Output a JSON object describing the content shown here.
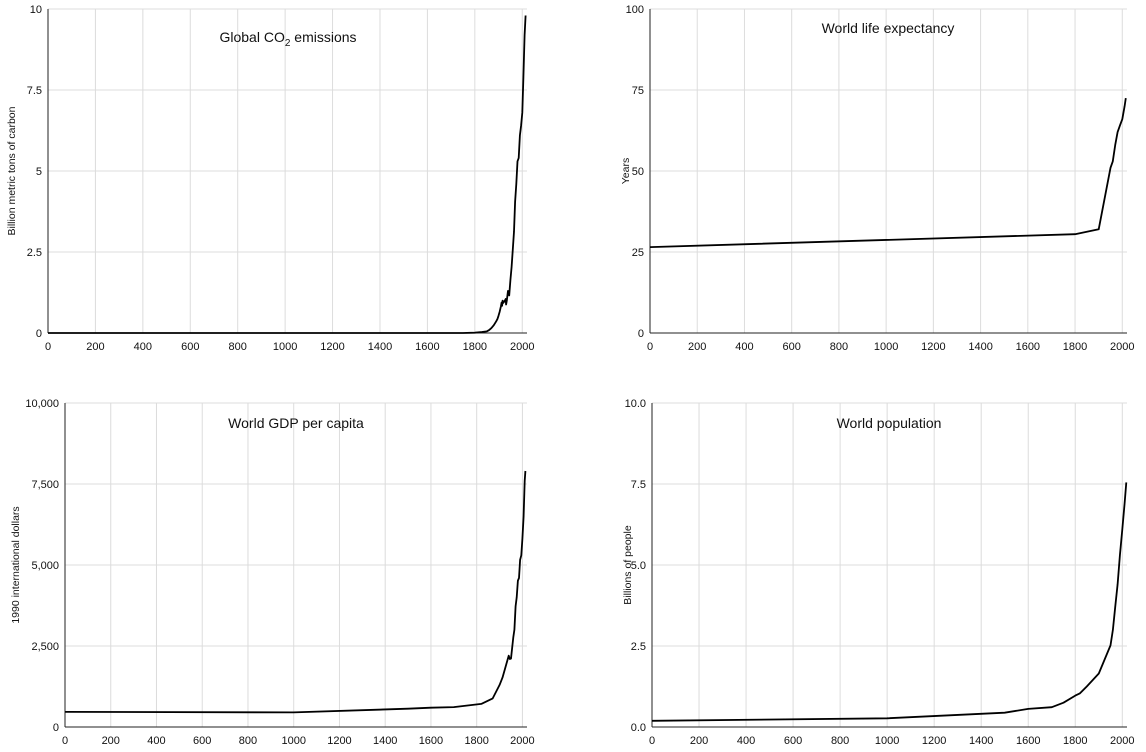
{
  "chart_data": [
    {
      "type": "line",
      "title": "Global CO",
      "title_sub": "2",
      "title_after": " emissions",
      "ylabel": "Billion metric tons of carbon",
      "xlim": [
        0,
        2020
      ],
      "ylim": [
        0,
        10
      ],
      "xticks": [
        0,
        200,
        400,
        600,
        800,
        1000,
        1200,
        1400,
        1600,
        1800,
        2000
      ],
      "xtick_labels": [
        "0",
        "200",
        "400",
        "600",
        "800",
        "1000",
        "1200",
        "1400",
        "1600",
        "1800",
        "2000"
      ],
      "yticks": [
        0,
        2.5,
        5,
        7.5,
        10
      ],
      "ytick_labels": [
        "0",
        "2.5",
        "5",
        "7.5",
        "10"
      ],
      "grid": true,
      "series": [
        {
          "x": [
            0,
            1750,
            1800,
            1830,
            1850,
            1860,
            1870,
            1880,
            1890,
            1895,
            1900,
            1905,
            1910,
            1913,
            1915,
            1917,
            1920,
            1925,
            1930,
            1932,
            1935,
            1940,
            1945,
            1950,
            1955,
            1960,
            1965,
            1970,
            1975,
            1980,
            1985,
            1990,
            1995,
            2000,
            2005,
            2010,
            2014
          ],
          "y": [
            0,
            0,
            0.01,
            0.03,
            0.05,
            0.09,
            0.15,
            0.24,
            0.36,
            0.43,
            0.53,
            0.66,
            0.82,
            0.94,
            0.84,
            1.0,
            0.93,
            0.98,
            1.05,
            0.88,
            1.0,
            1.3,
            1.16,
            1.63,
            2.04,
            2.58,
            3.13,
            4.05,
            4.6,
            5.3,
            5.4,
            6.1,
            6.4,
            6.8,
            7.9,
            9.2,
            9.8
          ]
        }
      ]
    },
    {
      "type": "line",
      "title": "World life expectancy",
      "ylabel": "Years",
      "xlim": [
        0,
        2020
      ],
      "ylim": [
        0,
        100
      ],
      "xticks": [
        0,
        200,
        400,
        600,
        800,
        1000,
        1200,
        1400,
        1600,
        1800,
        2000
      ],
      "xtick_labels": [
        "0",
        "200",
        "400",
        "600",
        "800",
        "1000",
        "1200",
        "1400",
        "1600",
        "1800",
        "2000"
      ],
      "yticks": [
        0,
        25,
        50,
        75,
        100
      ],
      "ytick_labels": [
        "0",
        "25",
        "50",
        "75",
        "100"
      ],
      "grid": true,
      "series": [
        {
          "x": [
            0,
            1800,
            1900,
            1950,
            1960,
            1970,
            1980,
            1990,
            2000,
            2010,
            2015
          ],
          "y": [
            26.5,
            30.5,
            32,
            51,
            53,
            58,
            62,
            64,
            66,
            70,
            72.5
          ]
        }
      ]
    },
    {
      "type": "line",
      "title": "World GDP per capita",
      "ylabel": "1990 international dollars",
      "xlim": [
        0,
        2020
      ],
      "ylim": [
        0,
        10000
      ],
      "xticks": [
        0,
        200,
        400,
        600,
        800,
        1000,
        1200,
        1400,
        1600,
        1800,
        2000
      ],
      "xtick_labels": [
        "0",
        "200",
        "400",
        "600",
        "800",
        "1000",
        "1200",
        "1400",
        "1600",
        "1800",
        "2000"
      ],
      "yticks": [
        0,
        2500,
        5000,
        7500,
        10000
      ],
      "ytick_labels": [
        "0",
        "2,500",
        "5,000",
        "7,500",
        "10,000"
      ],
      "grid": true,
      "series": [
        {
          "x": [
            1,
            1000,
            1500,
            1600,
            1700,
            1820,
            1870,
            1900,
            1913,
            1930,
            1940,
            1945,
            1950,
            1960,
            1965,
            1970,
            1975,
            1980,
            1985,
            1990,
            1995,
            2000,
            2005,
            2008,
            2010,
            2013
          ],
          "y": [
            467,
            450,
            566,
            596,
            615,
            712,
            882,
            1300,
            1525,
            1946,
            2200,
            2100,
            2113,
            2770,
            3000,
            3729,
            4000,
            4520,
            4600,
            5157,
            5300,
            5812,
            6500,
            7200,
            7600,
            7900
          ]
        }
      ]
    },
    {
      "type": "line",
      "title": "World population",
      "ylabel": "Billions of people",
      "xlim": [
        0,
        2020
      ],
      "ylim": [
        0,
        10
      ],
      "xticks": [
        0,
        200,
        400,
        600,
        800,
        1000,
        1200,
        1400,
        1600,
        1800,
        2000
      ],
      "xtick_labels": [
        "0",
        "200",
        "400",
        "600",
        "800",
        "1000",
        "1200",
        "1400",
        "1600",
        "1800",
        "2000"
      ],
      "yticks": [
        0,
        2.5,
        5,
        7.5,
        10
      ],
      "ytick_labels": [
        "0.0",
        "2.5",
        "5.0",
        "7.5",
        "10.0"
      ],
      "grid": true,
      "series": [
        {
          "x": [
            0,
            1000,
            1500,
            1600,
            1700,
            1750,
            1800,
            1820,
            1850,
            1900,
            1950,
            1960,
            1970,
            1980,
            1990,
            2000,
            2010,
            2017
          ],
          "y": [
            0.19,
            0.27,
            0.44,
            0.56,
            0.61,
            0.75,
            0.97,
            1.04,
            1.26,
            1.65,
            2.52,
            3.0,
            3.7,
            4.4,
            5.3,
            6.1,
            6.9,
            7.55
          ]
        }
      ]
    }
  ]
}
